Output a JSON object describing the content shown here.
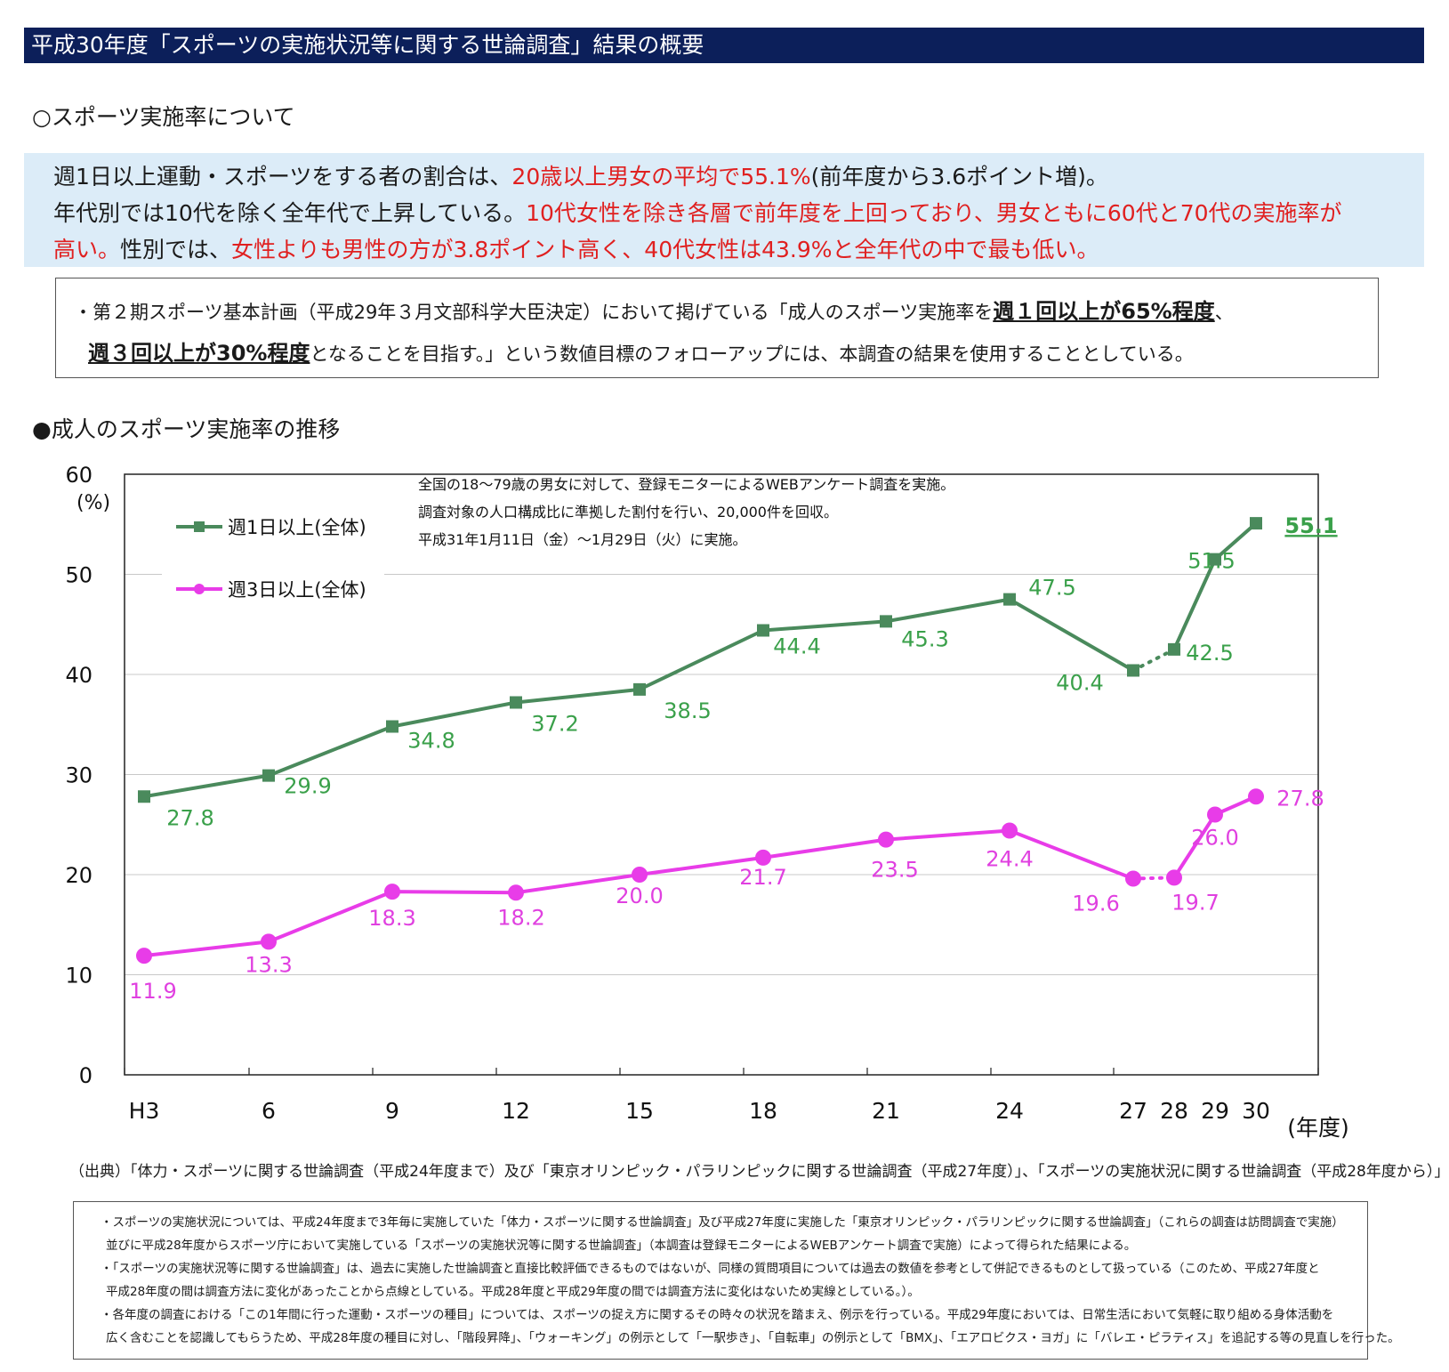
{
  "header": {
    "title": "平成30年度「スポーツの実施状況等に関する世論調査」結果の概要"
  },
  "section1": {
    "heading": "○スポーツ実施率について"
  },
  "summary": {
    "l1a": "週1日以上運動・スポーツをする者の割合は、",
    "l1b": "20歳以上男女の平均で55.1%",
    "l1c": "(前年度から3.6ポイント増)。",
    "l2a": "年代別では10代を除く全年代で上昇している。",
    "l2b": "10代女性を除き各層で前年度を上回っており、男女ともに60代と70代の実施率が",
    "l3a": "高い。",
    "l3b": "性別では、",
    "l3c": "女性よりも男性の方が3.8ポイント高く、40代女性は43.9%と全年代の中で最も低い。"
  },
  "goal": {
    "a": "・第２期スポーツ基本計画（平成29年３月文部科学大臣決定）において掲げている「成人のスポーツ実施率を",
    "b": "週１回以上が65%程度",
    "c": "、",
    "d": "週３回以上が30%程度",
    "e": "となることを目指す。」という数値目標のフォローアップには、本調査の結果を使用することとしている。"
  },
  "section2": {
    "heading": "●成人のスポーツ実施率の推移"
  },
  "chart_data": {
    "type": "line",
    "ylabel": "(%)",
    "xlabel": "(年度)",
    "ylim": [
      0,
      60
    ],
    "yticks": [
      0,
      10,
      20,
      30,
      40,
      50,
      60
    ],
    "x": [
      "H3",
      "6",
      "9",
      "12",
      "15",
      "18",
      "21",
      "24",
      "27",
      "28",
      "29",
      "30"
    ],
    "grid": true,
    "legend_position": "top-left",
    "note_lines": [
      "全国の18～79歳の男女に対して、登録モニターによるWEBアンケート調査を実施。",
      "調査対象の人口構成比に準拠した割付を行い、20,000件を回収。",
      "平成31年1月11日（金）～1月29日（火）に実施。"
    ],
    "series": [
      {
        "name": "週1日以上(全体)",
        "color": "#4a8a5c",
        "label_color": "#3aa04a",
        "marker": "square",
        "values": [
          27.8,
          29.9,
          34.8,
          37.2,
          38.5,
          44.4,
          45.3,
          47.5,
          40.4,
          42.5,
          51.5,
          55.1
        ],
        "labels": [
          "27.8",
          "29.9",
          "34.8",
          "37.2",
          "38.5",
          "44.4",
          "45.3",
          "47.5",
          "40.4",
          "42.5",
          "51.5",
          "55.1"
        ]
      },
      {
        "name": "週3日以上(全体)",
        "color": "#e83ce8",
        "label_color": "#e040e0",
        "marker": "circle",
        "values": [
          11.9,
          13.3,
          18.3,
          18.2,
          20.0,
          21.7,
          23.5,
          24.4,
          19.6,
          19.7,
          26.0,
          27.8
        ],
        "labels": [
          "11.9",
          "13.3",
          "18.3",
          "18.2",
          "20.0",
          "21.7",
          "23.5",
          "24.4",
          "19.6",
          "19.7",
          "26.0",
          "27.8"
        ]
      }
    ],
    "dotted_segment": [
      "27",
      "28"
    ]
  },
  "source": {
    "text": "（出典）「体力・スポーツに関する世論調査（平成24年度まで）及び「東京オリンピック・パラリンピックに関する世論調査（平成27年度）」、「スポーツの実施状況に関する世論調査（平成28年度から）」"
  },
  "notes": {
    "n1": "・スポーツの実施状況については、平成24年度まで3年毎に実施していた「体力・スポーツに関する世論調査」及び平成27年度に実施した「東京オリンピック・パラリンピックに関する世論調査」（これらの調査は訪問調査で実施）",
    "n2": "並びに平成28年度からスポーツ庁において実施している「スポーツの実施状況等に関する世論調査」（本調査は登録モニターによるWEBアンケート調査で実施）によって得られた結果による。",
    "n3": "・「スポーツの実施状況等に関する世論調査」は、過去に実施した世論調査と直接比較評価できるものではないが、同様の質問項目については過去の数値を参考として併記できるものとして扱っている（このため、平成27年度と",
    "n4": "平成28年度の間は調査方法に変化があったことから点線としている。平成28年度と平成29年度の間では調査方法に変化はないため実線としている。）。",
    "n5": "・各年度の調査における「この1年間に行った運動・スポーツの種目」については、スポーツの捉え方に関するその時々の状況を踏まえ、例示を行っている。平成29年度においては、日常生活において気軽に取り組める身体活動を",
    "n6": "広く含むことを認識してもらうため、平成28年度の種目に対し、「階段昇降」、「ウォーキング」の例示として「一駅歩き」、「自転車」の例示として「BMX」、「エアロビクス・ヨガ」に「バレエ・ピラティス」を追記する等の見直しを行った。"
  }
}
